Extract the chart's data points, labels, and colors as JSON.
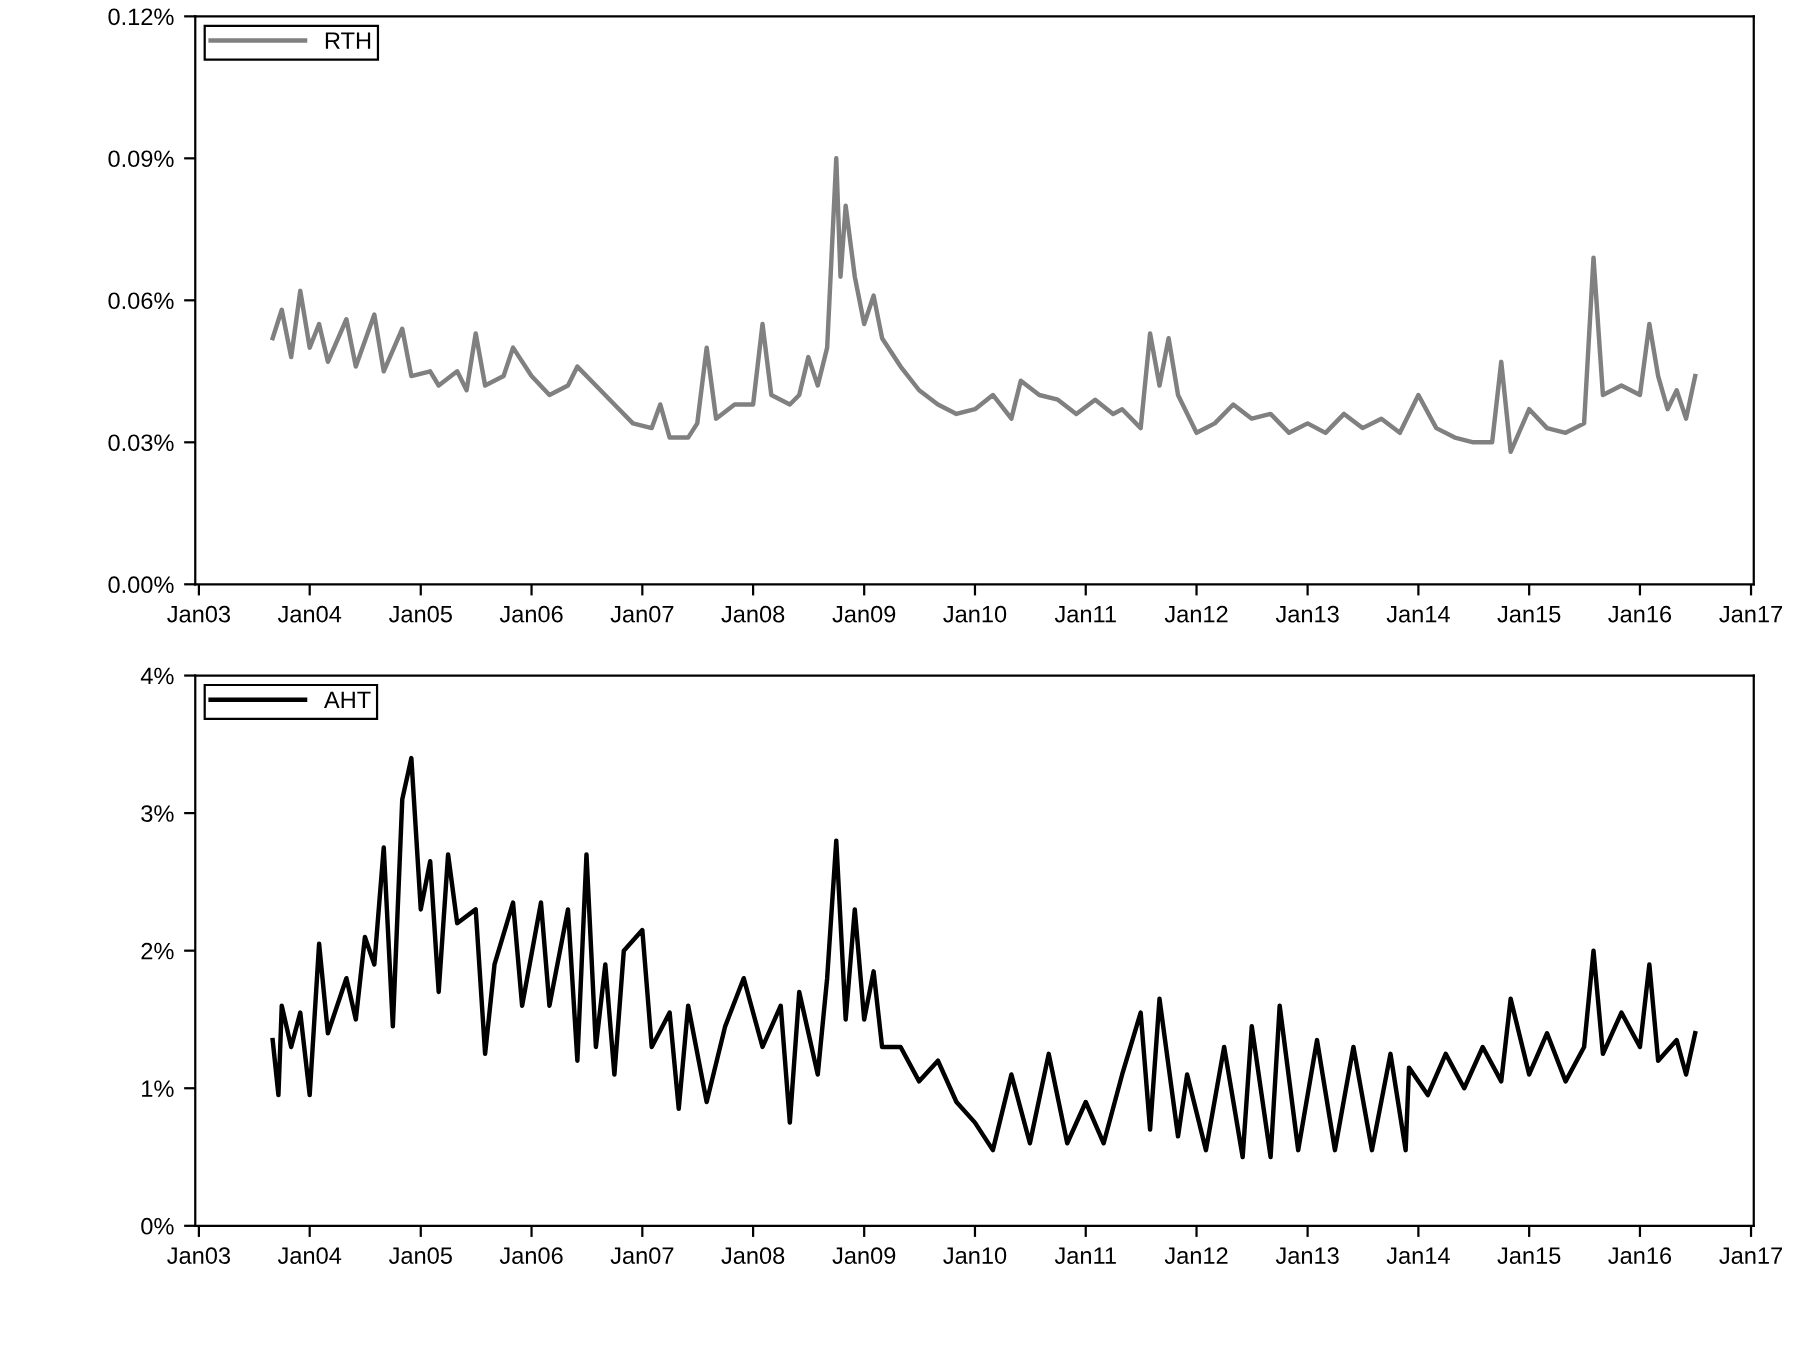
{
  "chart_data": [
    {
      "type": "line",
      "legend": "top left",
      "grid": false,
      "line_style": "solid",
      "marker": "none",
      "xlim": [
        "2002-12-20",
        "2017-01-10"
      ],
      "xticks": [
        {
          "value": "2003-01",
          "label": "Jan03"
        },
        {
          "value": "2004-01",
          "label": "Jan04"
        },
        {
          "value": "2005-01",
          "label": "Jan05"
        },
        {
          "value": "2006-01",
          "label": "Jan06"
        },
        {
          "value": "2007-01",
          "label": "Jan07"
        },
        {
          "value": "2008-01",
          "label": "Jan08"
        },
        {
          "value": "2009-01",
          "label": "Jan09"
        },
        {
          "value": "2010-01",
          "label": "Jan10"
        },
        {
          "value": "2011-01",
          "label": "Jan11"
        },
        {
          "value": "2012-01",
          "label": "Jan12"
        },
        {
          "value": "2013-01",
          "label": "Jan13"
        },
        {
          "value": "2014-01",
          "label": "Jan14"
        },
        {
          "value": "2015-01",
          "label": "Jan15"
        },
        {
          "value": "2016-01",
          "label": "Jan16"
        },
        {
          "value": "2017-01",
          "label": "Jan17"
        }
      ],
      "ylim": [
        0,
        0.12
      ],
      "yticks": [
        {
          "value": 0,
          "label": "0.00%"
        },
        {
          "value": 0.03,
          "label": "0.03%"
        },
        {
          "value": 0.06,
          "label": "0.06%"
        },
        {
          "value": 0.09,
          "label": "0.09%"
        },
        {
          "value": 0.12,
          "label": "0.12%"
        }
      ],
      "series": [
        {
          "name": "RTH",
          "color": "#808080",
          "x": [
            "2003-09",
            "2003-10",
            "2003-11",
            "2003-12",
            "2004-01",
            "2004-02",
            "2004-03",
            "2004-05",
            "2004-06",
            "2004-08",
            "2004-09",
            "2004-11",
            "2004-12",
            "2005-02",
            "2005-03",
            "2005-05",
            "2005-06",
            "2005-07",
            "2005-08",
            "2005-10",
            "2005-11",
            "2006-01",
            "2006-03",
            "2006-05",
            "2006-06",
            "2006-08",
            "2006-10",
            "2006-12",
            "2007-02",
            "2007-03",
            "2007-04",
            "2007-06",
            "2007-07",
            "2007-08",
            "2007-09",
            "2007-11",
            "2008-01",
            "2008-02",
            "2008-03",
            "2008-05",
            "2008-06",
            "2008-07",
            "2008-08",
            "2008-09",
            "2008-10",
            "2008-10-15",
            "2008-11",
            "2008-12",
            "2009-01",
            "2009-02",
            "2009-03",
            "2009-05",
            "2009-07",
            "2009-09",
            "2009-11",
            "2010-01",
            "2010-03",
            "2010-05",
            "2010-06",
            "2010-08",
            "2010-10",
            "2010-12",
            "2011-02",
            "2011-04",
            "2011-05",
            "2011-07",
            "2011-08",
            "2011-09",
            "2011-10",
            "2011-11",
            "2012-01",
            "2012-03",
            "2012-05",
            "2012-07",
            "2012-09",
            "2012-11",
            "2013-01",
            "2013-03",
            "2013-05",
            "2013-07",
            "2013-09",
            "2013-11",
            "2014-01",
            "2014-03",
            "2014-05",
            "2014-07",
            "2014-09",
            "2014-10",
            "2014-11",
            "2015-01",
            "2015-03",
            "2015-05",
            "2015-07",
            "2015-08",
            "2015-09",
            "2015-11",
            "2016-01",
            "2016-02",
            "2016-03",
            "2016-04",
            "2016-05",
            "2016-06",
            "2016-07"
          ],
          "values": [
            0.052,
            0.058,
            0.048,
            0.062,
            0.05,
            0.055,
            0.047,
            0.056,
            0.046,
            0.057,
            0.045,
            0.054,
            0.044,
            0.045,
            0.042,
            0.045,
            0.041,
            0.053,
            0.042,
            0.044,
            0.05,
            0.044,
            0.04,
            0.042,
            0.046,
            0.042,
            0.038,
            0.034,
            0.033,
            0.038,
            0.031,
            0.031,
            0.034,
            0.05,
            0.035,
            0.038,
            0.038,
            0.055,
            0.04,
            0.038,
            0.04,
            0.048,
            0.042,
            0.05,
            0.09,
            0.065,
            0.08,
            0.065,
            0.055,
            0.061,
            0.052,
            0.046,
            0.041,
            0.038,
            0.036,
            0.037,
            0.04,
            0.035,
            0.043,
            0.04,
            0.039,
            0.036,
            0.039,
            0.036,
            0.037,
            0.033,
            0.053,
            0.042,
            0.052,
            0.04,
            0.032,
            0.034,
            0.038,
            0.035,
            0.036,
            0.032,
            0.034,
            0.032,
            0.036,
            0.033,
            0.035,
            0.032,
            0.04,
            0.033,
            0.031,
            0.03,
            0.03,
            0.047,
            0.028,
            0.037,
            0.033,
            0.032,
            0.034,
            0.069,
            0.04,
            0.042,
            0.04,
            0.055,
            0.044,
            0.037,
            0.041,
            0.035,
            0.044
          ]
        }
      ]
    },
    {
      "type": "line",
      "legend": "top left",
      "grid": false,
      "line_style": "solid",
      "marker": "none",
      "xlim": [
        "2002-12-20",
        "2017-01-10"
      ],
      "xticks": [
        {
          "value": "2003-01",
          "label": "Jan03"
        },
        {
          "value": "2004-01",
          "label": "Jan04"
        },
        {
          "value": "2005-01",
          "label": "Jan05"
        },
        {
          "value": "2006-01",
          "label": "Jan06"
        },
        {
          "value": "2007-01",
          "label": "Jan07"
        },
        {
          "value": "2008-01",
          "label": "Jan08"
        },
        {
          "value": "2009-01",
          "label": "Jan09"
        },
        {
          "value": "2010-01",
          "label": "Jan10"
        },
        {
          "value": "2011-01",
          "label": "Jan11"
        },
        {
          "value": "2012-01",
          "label": "Jan12"
        },
        {
          "value": "2013-01",
          "label": "Jan13"
        },
        {
          "value": "2014-01",
          "label": "Jan14"
        },
        {
          "value": "2015-01",
          "label": "Jan15"
        },
        {
          "value": "2016-01",
          "label": "Jan16"
        },
        {
          "value": "2017-01",
          "label": "Jan17"
        }
      ],
      "ylim": [
        0,
        4
      ],
      "yticks": [
        {
          "value": 0,
          "label": "0%"
        },
        {
          "value": 1,
          "label": "1%"
        },
        {
          "value": 2,
          "label": "2%"
        },
        {
          "value": 3,
          "label": "3%"
        },
        {
          "value": 4,
          "label": "4%"
        }
      ],
      "series": [
        {
          "name": "AHT",
          "color": "#000000",
          "x": [
            "2003-09",
            "2003-09-20",
            "2003-10",
            "2003-11",
            "2003-12",
            "2004-01",
            "2004-02",
            "2004-03",
            "2004-05",
            "2004-06",
            "2004-07",
            "2004-08",
            "2004-09",
            "2004-10",
            "2004-11",
            "2004-12",
            "2005-01",
            "2005-02",
            "2005-03",
            "2005-04",
            "2005-05",
            "2005-07",
            "2005-08",
            "2005-09",
            "2005-11",
            "2005-12",
            "2006-02",
            "2006-03",
            "2006-05",
            "2006-06",
            "2006-07",
            "2006-08",
            "2006-09",
            "2006-10",
            "2006-11",
            "2007-01",
            "2007-02",
            "2007-04",
            "2007-05",
            "2007-06",
            "2007-08",
            "2007-10",
            "2007-12",
            "2008-02",
            "2008-04",
            "2008-05",
            "2008-06",
            "2008-08",
            "2008-09",
            "2008-10",
            "2008-11",
            "2008-12",
            "2009-01",
            "2009-02",
            "2009-03",
            "2009-05",
            "2009-07",
            "2009-09",
            "2009-11",
            "2010-01",
            "2010-03",
            "2010-05",
            "2010-07",
            "2010-09",
            "2010-11",
            "2011-01",
            "2011-03",
            "2011-05",
            "2011-07",
            "2011-08",
            "2011-09",
            "2011-11",
            "2011-12",
            "2012-02",
            "2012-04",
            "2012-06",
            "2012-07",
            "2012-09",
            "2012-10",
            "2012-12",
            "2013-02",
            "2013-04",
            "2013-06",
            "2013-08",
            "2013-10",
            "2013-11-20",
            "2013-12",
            "2014-02",
            "2014-04",
            "2014-06",
            "2014-08",
            "2014-10",
            "2014-11",
            "2015-01",
            "2015-03",
            "2015-05",
            "2015-07",
            "2015-08",
            "2015-09",
            "2015-11",
            "2016-01",
            "2016-02",
            "2016-03",
            "2016-05",
            "2016-06",
            "2016-07"
          ],
          "values": [
            1.35,
            0.95,
            1.6,
            1.3,
            1.55,
            0.95,
            2.05,
            1.4,
            1.8,
            1.5,
            2.1,
            1.9,
            2.75,
            1.45,
            3.1,
            3.4,
            2.3,
            2.65,
            1.7,
            2.7,
            2.2,
            2.3,
            1.25,
            1.9,
            2.35,
            1.6,
            2.35,
            1.6,
            2.3,
            1.2,
            2.7,
            1.3,
            1.9,
            1.1,
            2.0,
            2.15,
            1.3,
            1.55,
            0.85,
            1.6,
            0.9,
            1.45,
            1.8,
            1.3,
            1.6,
            0.75,
            1.7,
            1.1,
            1.8,
            2.8,
            1.5,
            2.3,
            1.5,
            1.85,
            1.3,
            1.3,
            1.05,
            1.2,
            0.9,
            0.75,
            0.55,
            1.1,
            0.6,
            1.25,
            0.6,
            0.9,
            0.6,
            1.1,
            1.55,
            0.7,
            1.65,
            0.65,
            1.1,
            0.55,
            1.3,
            0.5,
            1.45,
            0.5,
            1.6,
            0.55,
            1.35,
            0.55,
            1.3,
            0.55,
            1.25,
            0.55,
            1.15,
            0.95,
            1.25,
            1.0,
            1.3,
            1.05,
            1.65,
            1.1,
            1.4,
            1.05,
            1.3,
            2.0,
            1.25,
            1.55,
            1.3,
            1.9,
            1.2,
            1.35,
            1.1,
            1.4
          ]
        }
      ]
    }
  ]
}
